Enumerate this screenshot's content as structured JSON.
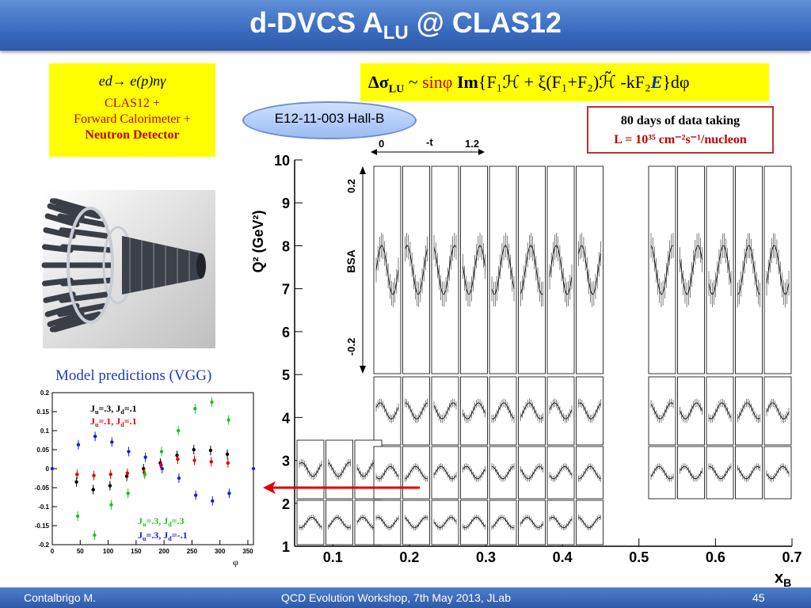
{
  "title": {
    "main": "d-DVCS A",
    "sub": "LU",
    "rest": " @ CLAS12"
  },
  "reaction": {
    "equation": "ed→ e(p)nγ",
    "line1": "CLAS12 +",
    "line2": "Forward Calorimeter +",
    "line3": "Neutron Detector"
  },
  "formula": {
    "lhs": "Δσ",
    "lhs_sub": "LU",
    "tilde": " ~ ",
    "sin": "sinφ",
    "im": " Im",
    "body": "{F₁ℋ + ξ(F₁+F₂)ℋ̃ -kF₂",
    "e": "E",
    "end": "}dφ"
  },
  "experiment": "E12-11-003  Hall-B",
  "beamtime": {
    "line1": "80 days of data taking",
    "line2": "L = 10³⁵ cm⁻²s⁻¹/nucleon"
  },
  "model_title": "Model predictions (VGG)",
  "footer": {
    "left": "Contalbrigo M.",
    "center": "QCD Evolution Workshop, 7th May 2013, JLab",
    "right": "45"
  },
  "colors": {
    "black": "#000000",
    "red": "#e00000",
    "green": "#20c020",
    "blue": "#1020e0",
    "arrow": "#e00000"
  },
  "chart_data": [
    {
      "type": "scatter",
      "xlabel": "xB",
      "ylabel": "Q² (GeV²)",
      "xlim": [
        0.05,
        0.7
      ],
      "ylim": [
        1,
        10
      ],
      "x_ticks": [
        "0.1",
        "0.2",
        "0.3",
        "0.4",
        "0.5",
        "0.6",
        "0.7"
      ],
      "y_ticks": [
        "1",
        "2",
        "3",
        "4",
        "5",
        "6",
        "7",
        "8",
        "9",
        "10"
      ],
      "inset": {
        "t_range": [
          "0",
          "-t",
          "1.2"
        ],
        "bsa_label": "BSA",
        "bsa_ticks": [
          "0.2",
          "-0.2"
        ]
      }
    },
    {
      "type": "scatter",
      "xlabel": "φ",
      "ylim": [
        -0.2,
        0.2
      ],
      "x_ticks": [
        "0",
        "50",
        "100",
        "150",
        "200",
        "250",
        "300",
        "350"
      ],
      "y_ticks": [
        "0.2",
        "0.15",
        "0.1",
        "0.05",
        "0",
        "-0.05",
        "-0.1",
        "-0.15",
        "-0.2"
      ],
      "phi": [
        45,
        75,
        105,
        135,
        165,
        195,
        225,
        255,
        285,
        315
      ],
      "series": [
        {
          "name": "Ju=.3, Jd=.1",
          "color": "#000000",
          "values": [
            -0.035,
            -0.055,
            -0.045,
            -0.02,
            0,
            0.015,
            0.035,
            0.05,
            0.048,
            0.038
          ]
        },
        {
          "name": "Ju=.1, Jd=.1",
          "color": "#e00000",
          "values": [
            -0.015,
            -0.018,
            -0.015,
            -0.012,
            -0.01,
            0.01,
            0.025,
            0.022,
            0.018,
            0.015
          ]
        },
        {
          "name": "Ju=.3, Jd=.3",
          "color": "#20c020",
          "values": [
            -0.125,
            -0.175,
            -0.095,
            -0.065,
            -0.015,
            0.045,
            0.1,
            0.158,
            0.175,
            0.128
          ]
        },
        {
          "name": "Ju=.3, Jd=-.1",
          "color": "#1020e0",
          "values": [
            0.063,
            0.085,
            0.07,
            0.045,
            0.03,
            0,
            -0.025,
            -0.07,
            -0.085,
            -0.065
          ]
        }
      ],
      "edge_points": [
        {
          "phi": 0,
          "value": 0
        },
        {
          "phi": 360,
          "value": 0
        }
      ]
    }
  ]
}
